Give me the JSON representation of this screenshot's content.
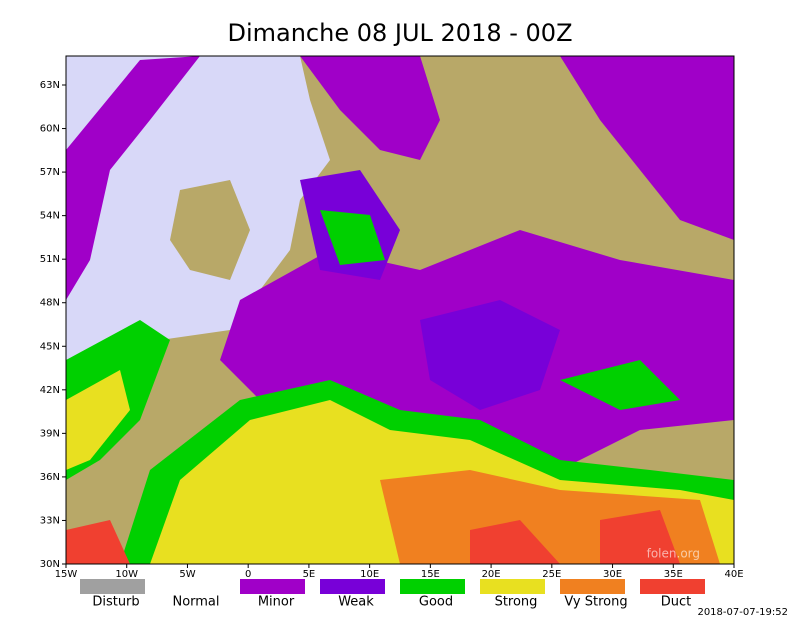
{
  "title": "Dimanche 08 JUL 2018 - 00Z",
  "map": {
    "lat_labels": [
      "63N",
      "60N",
      "57N",
      "54N",
      "51N",
      "48N",
      "45N",
      "42N",
      "39N",
      "36N",
      "33N",
      "30N"
    ],
    "lon_labels": [
      "15W",
      "10W",
      "5W",
      "0",
      "5E",
      "10E",
      "15E",
      "20E",
      "25E",
      "30E",
      "35E",
      "40E"
    ],
    "watermark": "folen.org"
  },
  "legend": {
    "items": [
      {
        "label": "Disturb",
        "color": "#a0a0a0"
      },
      {
        "label": "Normal",
        "color": "#ffffff"
      },
      {
        "label": "Minor",
        "color": "#a000c8"
      },
      {
        "label": "Weak",
        "color": "#7800d8"
      },
      {
        "label": "Good",
        "color": "#00d000"
      },
      {
        "label": "Strong",
        "color": "#e8e020"
      },
      {
        "label": "Vy Strong",
        "color": "#f08020"
      },
      {
        "label": "Duct",
        "color": "#f04030"
      }
    ]
  },
  "timestamp": "2018-07-07-19:52"
}
